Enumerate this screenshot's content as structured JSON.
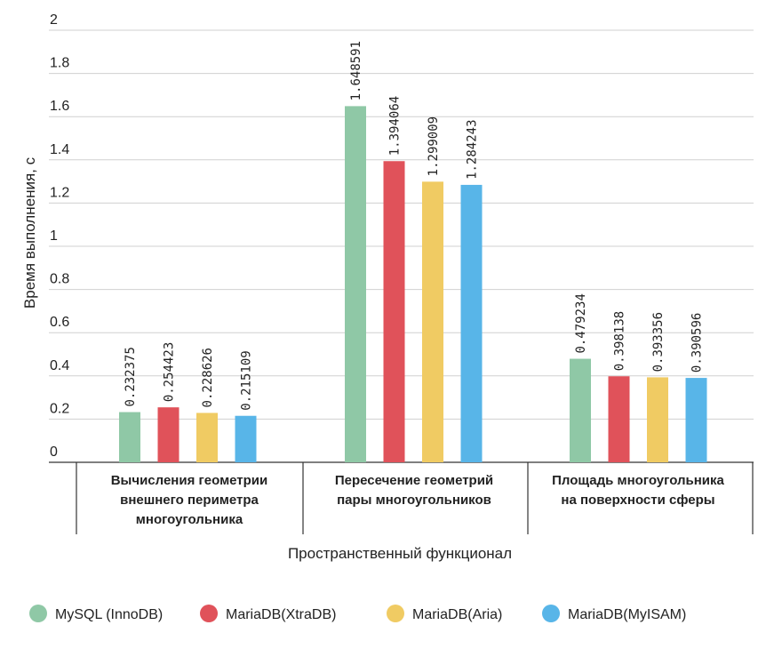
{
  "chart_data": {
    "type": "bar",
    "ylabel": "Время выполнения, с",
    "xlabel": "Пространственный функционал",
    "ylim": [
      0,
      2
    ],
    "yticks": [
      "0",
      "0.2",
      "0.4",
      "0.6",
      "0.8",
      "1",
      "1.2",
      "1.4",
      "1.6",
      "1.8",
      "2"
    ],
    "grid": true,
    "legend_position": "bottom",
    "categories": [
      [
        "Вычисления геометрии",
        "внешнего периметра",
        "многоугольника"
      ],
      [
        "Пересечение геометрий",
        "пары многоугольников"
      ],
      [
        "Площадь многоугольника",
        "на поверхности сферы"
      ]
    ],
    "series": [
      {
        "name": "MySQL (InnoDB)",
        "color": "#8fc8a6",
        "values": [
          0.232375,
          1.648591,
          0.479234
        ],
        "labels": [
          "0.232375",
          "1.648591",
          "0.479234"
        ]
      },
      {
        "name": "MariaDB(XtraDB)",
        "color": "#e0525a",
        "values": [
          0.254423,
          1.394064,
          0.398138
        ],
        "labels": [
          "0.254423",
          "1.394064",
          "0.398138"
        ]
      },
      {
        "name": "MariaDB(Aria)",
        "color": "#f0cb63",
        "values": [
          0.228626,
          1.299009,
          0.393356
        ],
        "labels": [
          "0.228626",
          "1.299009",
          "0.393356"
        ]
      },
      {
        "name": "MariaDB(MyISAM)",
        "color": "#58b5e8",
        "values": [
          0.215109,
          1.284243,
          0.390596
        ],
        "labels": [
          "0.215109",
          "1.284243",
          "0.390596"
        ]
      }
    ]
  }
}
